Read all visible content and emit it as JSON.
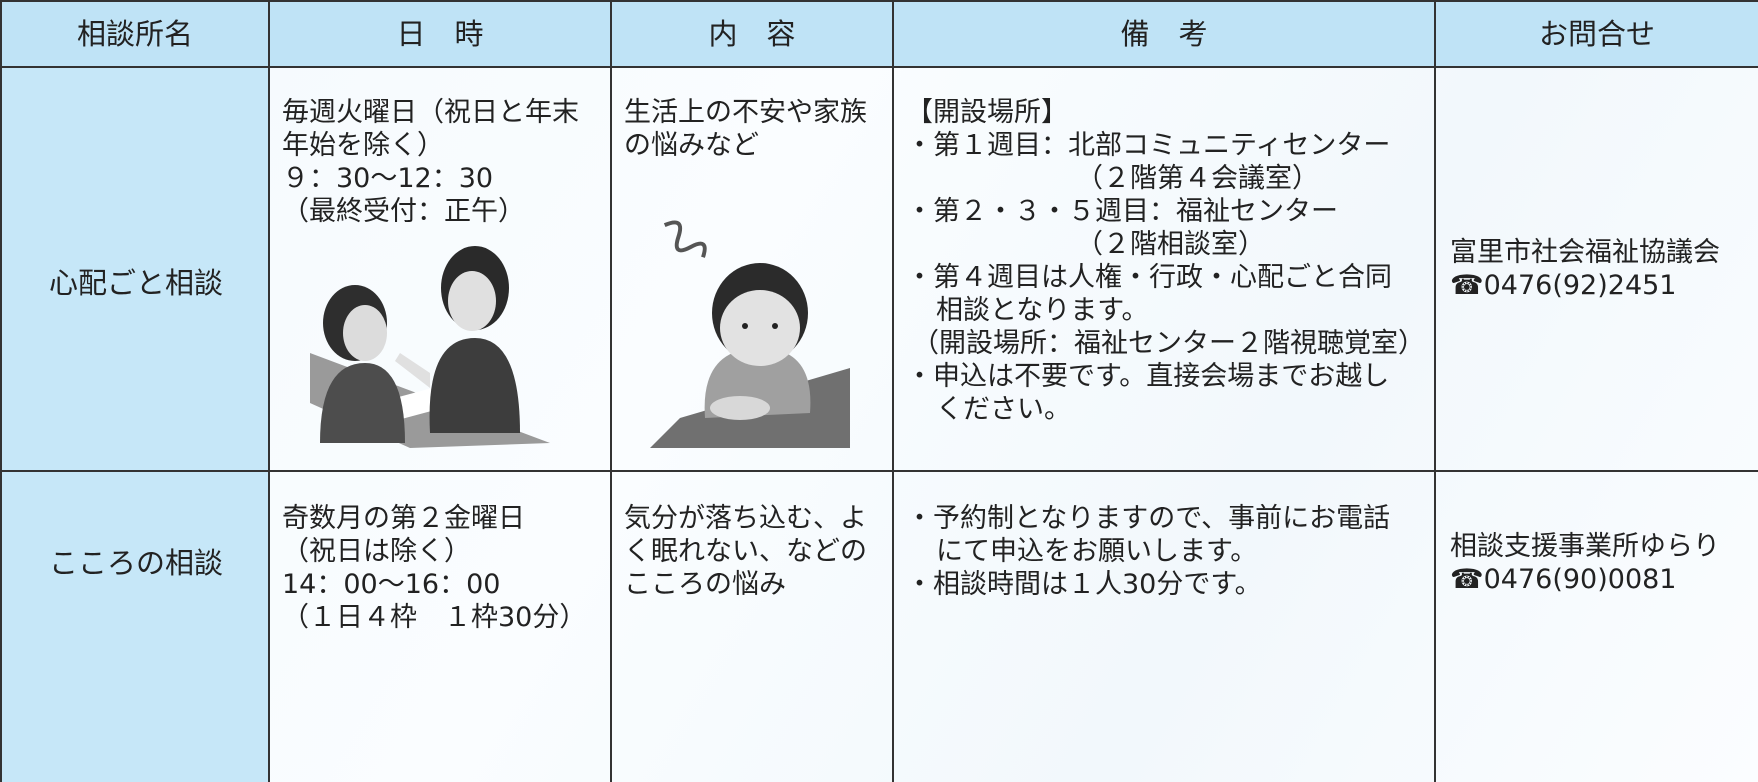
{
  "table": {
    "header": [
      "相談所名",
      "日　時",
      "内　容",
      "備　考",
      "お問合せ"
    ],
    "rows": [
      [
        [
          "心配ごと相談"
        ],
        [
          "毎週火曜日（祝日と年末",
          "年始を除く）",
          "９：30〜12：30",
          "（最終受付：正午）"
        ],
        [
          "生活上の不安や家族",
          "の悩みなど"
        ],
        [
          "【開設場所】",
          "・第１週目：北部コミュニティセンター",
          "（２階第４会議室）",
          "・第２・３・５週目：福祉センター",
          "（２階相談室）",
          "・第４週目は人権・行政・心配ごと合同",
          "相談となります。",
          "（開設場所：福祉センター２階視聴覚室）",
          "・申込は不要です。直接会場までお越し",
          "ください。"
        ],
        [
          "富里市社会福祉協議会",
          "☎0476(92)2451"
        ]
      ],
      [
        [
          "こころの相談"
        ],
        [
          "奇数月の第２金曜日",
          "（祝日は除く）",
          "14：00〜16：00",
          "（１日４枠　１枠30分）"
        ],
        [
          "気分が落ち込む、よ",
          "く眠れない、などの",
          "こころの悩み"
        ],
        [
          "・予約制となりますので、事前にお電話",
          "にて申込をお願いします。",
          "・相談時間は１人30分です。"
        ],
        [
          "相談支援事業所ゆらり",
          "☎0476(90)0081"
        ]
      ]
    ]
  }
}
